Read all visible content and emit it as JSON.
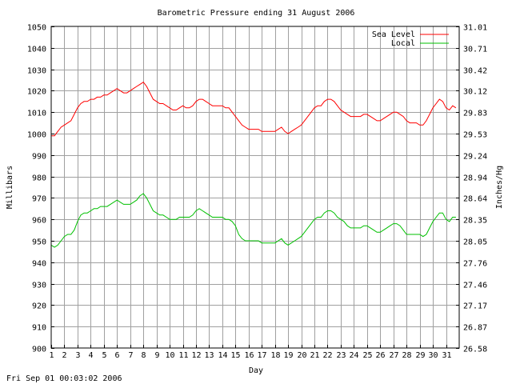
{
  "chart_data": {
    "type": "line",
    "title": "Barometric Pressure ending 31 August 2006",
    "xlabel": "Day",
    "ylabel": "Millibars",
    "ylabel_right": "Inches/Hg",
    "xlim": [
      1,
      32
    ],
    "ylim": [
      900,
      1050
    ],
    "ylim_right": [
      26.58,
      31.01
    ],
    "x_ticks": [
      "1",
      "2",
      "3",
      "4",
      "5",
      "6",
      "7",
      "8",
      "9",
      "10",
      "11",
      "12",
      "13",
      "14",
      "15",
      "16",
      "17",
      "18",
      "19",
      "20",
      "21",
      "22",
      "23",
      "24",
      "25",
      "26",
      "27",
      "28",
      "29",
      "30",
      "31"
    ],
    "y_ticks_left": [
      "900",
      "910",
      "920",
      "930",
      "940",
      "950",
      "960",
      "970",
      "980",
      "990",
      "1000",
      "1010",
      "1020",
      "1030",
      "1040",
      "1050"
    ],
    "y_ticks_right": [
      "26.58",
      "26.87",
      "27.17",
      "27.46",
      "27.76",
      "28.05",
      "28.35",
      "28.64",
      "28.94",
      "29.24",
      "29.53",
      "29.83",
      "30.12",
      "30.42",
      "30.71",
      "31.01"
    ],
    "grid": true,
    "legend_position": "top-right",
    "series": [
      {
        "name": "Sea Level",
        "color": "#ff0000",
        "x": [
          1.0,
          1.25,
          1.5,
          1.75,
          2.0,
          2.25,
          2.5,
          2.75,
          3.0,
          3.25,
          3.5,
          3.75,
          4.0,
          4.25,
          4.5,
          4.75,
          5.0,
          5.25,
          5.5,
          5.75,
          6.0,
          6.25,
          6.5,
          6.75,
          7.0,
          7.25,
          7.5,
          7.75,
          8.0,
          8.25,
          8.5,
          8.75,
          9.0,
          9.25,
          9.5,
          9.75,
          10.0,
          10.25,
          10.5,
          10.75,
          11.0,
          11.25,
          11.5,
          11.75,
          12.0,
          12.25,
          12.5,
          12.75,
          13.0,
          13.25,
          13.5,
          13.75,
          14.0,
          14.25,
          14.5,
          14.75,
          15.0,
          15.25,
          15.5,
          15.75,
          16.0,
          16.25,
          16.5,
          16.75,
          17.0,
          17.25,
          17.5,
          17.75,
          18.0,
          18.25,
          18.5,
          18.75,
          19.0,
          19.25,
          19.5,
          19.75,
          20.0,
          20.25,
          20.5,
          20.75,
          21.0,
          21.25,
          21.5,
          21.75,
          22.0,
          22.25,
          22.5,
          22.75,
          23.0,
          23.25,
          23.5,
          23.75,
          24.0,
          24.25,
          24.5,
          24.75,
          25.0,
          25.25,
          25.5,
          25.75,
          26.0,
          26.25,
          26.5,
          26.75,
          27.0,
          27.25,
          27.5,
          27.75,
          28.0,
          28.25,
          28.5,
          28.75,
          29.0,
          29.25,
          29.5,
          29.75,
          30.0,
          30.25,
          30.5,
          30.75,
          31.0,
          31.25,
          31.5,
          31.75
        ],
        "values": [
          999,
          999,
          1001,
          1003,
          1004,
          1005,
          1006,
          1009,
          1012,
          1014,
          1015,
          1015,
          1016,
          1016,
          1017,
          1017,
          1018,
          1018,
          1019,
          1020,
          1021,
          1020,
          1019,
          1019,
          1020,
          1021,
          1022,
          1023,
          1024,
          1022,
          1019,
          1016,
          1015,
          1014,
          1014,
          1013,
          1012,
          1011,
          1011,
          1012,
          1013,
          1012,
          1012,
          1013,
          1015,
          1016,
          1016,
          1015,
          1014,
          1013,
          1013,
          1013,
          1013,
          1012,
          1012,
          1010,
          1008,
          1006,
          1004,
          1003,
          1002,
          1002,
          1002,
          1002,
          1001,
          1001,
          1001,
          1001,
          1001,
          1002,
          1003,
          1001,
          1000,
          1001,
          1002,
          1003,
          1004,
          1006,
          1008,
          1010,
          1012,
          1013,
          1013,
          1015,
          1016,
          1016,
          1015,
          1013,
          1011,
          1010,
          1009,
          1008,
          1008,
          1008,
          1008,
          1009,
          1009,
          1008,
          1007,
          1006,
          1006,
          1007,
          1008,
          1009,
          1010,
          1010,
          1009,
          1008,
          1006,
          1005,
          1005,
          1005,
          1004,
          1004,
          1006,
          1009,
          1012,
          1014,
          1016,
          1015,
          1012,
          1011,
          1013,
          1012
        ]
      },
      {
        "name": "Local",
        "color": "#00c000",
        "x": [
          1.0,
          1.25,
          1.5,
          1.75,
          2.0,
          2.25,
          2.5,
          2.75,
          3.0,
          3.25,
          3.5,
          3.75,
          4.0,
          4.25,
          4.5,
          4.75,
          5.0,
          5.25,
          5.5,
          5.75,
          6.0,
          6.25,
          6.5,
          6.75,
          7.0,
          7.25,
          7.5,
          7.75,
          8.0,
          8.25,
          8.5,
          8.75,
          9.0,
          9.25,
          9.5,
          9.75,
          10.0,
          10.25,
          10.5,
          10.75,
          11.0,
          11.25,
          11.5,
          11.75,
          12.0,
          12.25,
          12.5,
          12.75,
          13.0,
          13.25,
          13.5,
          13.75,
          14.0,
          14.25,
          14.5,
          14.75,
          15.0,
          15.25,
          15.5,
          15.75,
          16.0,
          16.25,
          16.5,
          16.75,
          17.0,
          17.25,
          17.5,
          17.75,
          18.0,
          18.25,
          18.5,
          18.75,
          19.0,
          19.25,
          19.5,
          19.75,
          20.0,
          20.25,
          20.5,
          20.75,
          21.0,
          21.25,
          21.5,
          21.75,
          22.0,
          22.25,
          22.5,
          22.75,
          23.0,
          23.25,
          23.5,
          23.75,
          24.0,
          24.25,
          24.5,
          24.75,
          25.0,
          25.25,
          25.5,
          25.75,
          26.0,
          26.25,
          26.5,
          26.75,
          27.0,
          27.25,
          27.5,
          27.75,
          28.0,
          28.25,
          28.5,
          28.75,
          29.0,
          29.25,
          29.5,
          29.75,
          30.0,
          30.25,
          30.5,
          30.75,
          31.0,
          31.25,
          31.5,
          31.75
        ],
        "values": [
          948,
          947,
          948,
          950,
          952,
          953,
          953,
          955,
          959,
          962,
          963,
          963,
          964,
          965,
          965,
          966,
          966,
          966,
          967,
          968,
          969,
          968,
          967,
          967,
          967,
          968,
          969,
          971,
          972,
          970,
          967,
          964,
          963,
          962,
          962,
          961,
          960,
          960,
          960,
          961,
          961,
          961,
          961,
          962,
          964,
          965,
          964,
          963,
          962,
          961,
          961,
          961,
          961,
          960,
          960,
          959,
          957,
          953,
          951,
          950,
          950,
          950,
          950,
          950,
          949,
          949,
          949,
          949,
          949,
          950,
          951,
          949,
          948,
          949,
          950,
          951,
          952,
          954,
          956,
          958,
          960,
          961,
          961,
          963,
          964,
          964,
          963,
          961,
          960,
          959,
          957,
          956,
          956,
          956,
          956,
          957,
          957,
          956,
          955,
          954,
          954,
          955,
          956,
          957,
          958,
          958,
          957,
          955,
          953,
          953,
          953,
          953,
          953,
          952,
          953,
          956,
          959,
          961,
          963,
          963,
          960,
          959,
          961,
          961
        ]
      }
    ]
  },
  "footer_timestamp": "Fri Sep 01 00:03:02 2006"
}
